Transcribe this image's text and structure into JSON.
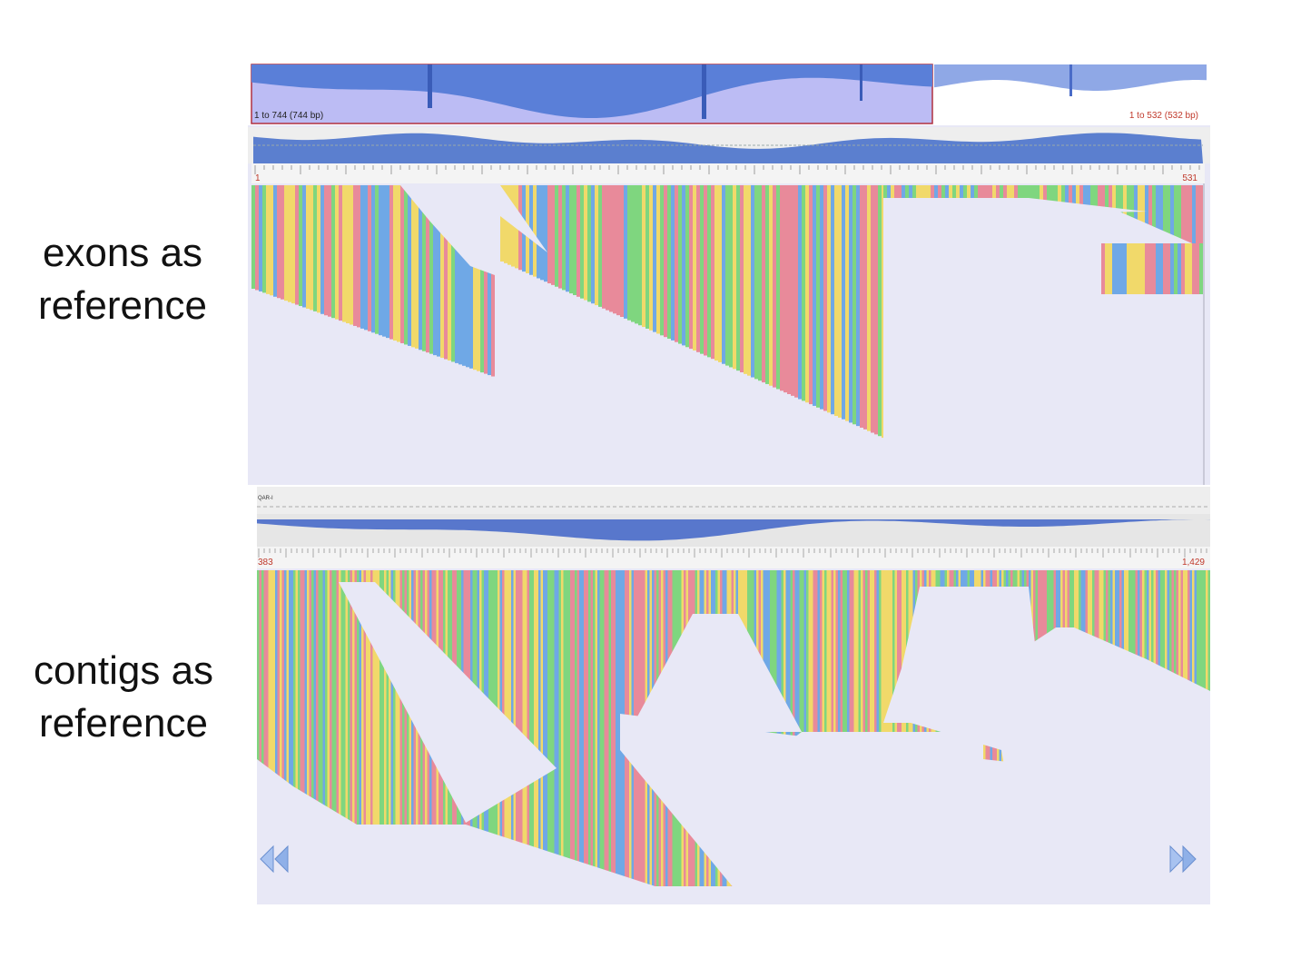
{
  "labels": {
    "top_line1": "exons as",
    "top_line2": "reference",
    "bottom_line1": "contigs as",
    "bottom_line2": "reference"
  },
  "top_panel": {
    "overview_left_range": "1 to 744 (744 bp)",
    "overview_right_range": "1 to 532 (532 bp)",
    "ruler_start": "1",
    "ruler_end": "531"
  },
  "bottom_panel": {
    "contig_name": "QAR-I",
    "ruler_start": "383",
    "ruler_end": "1,429",
    "nav_prev_icon": "double-chevron-left-icon",
    "nav_next_icon": "double-chevron-right-icon"
  },
  "colors": {
    "background": "#e8e8f6",
    "base_a": "#7fd67f",
    "base_c": "#6fa8e6",
    "base_g": "#f1d96a",
    "base_t": "#e88a9a",
    "coverage": "#4a6fcf",
    "ruler_text": "#c0392b"
  }
}
